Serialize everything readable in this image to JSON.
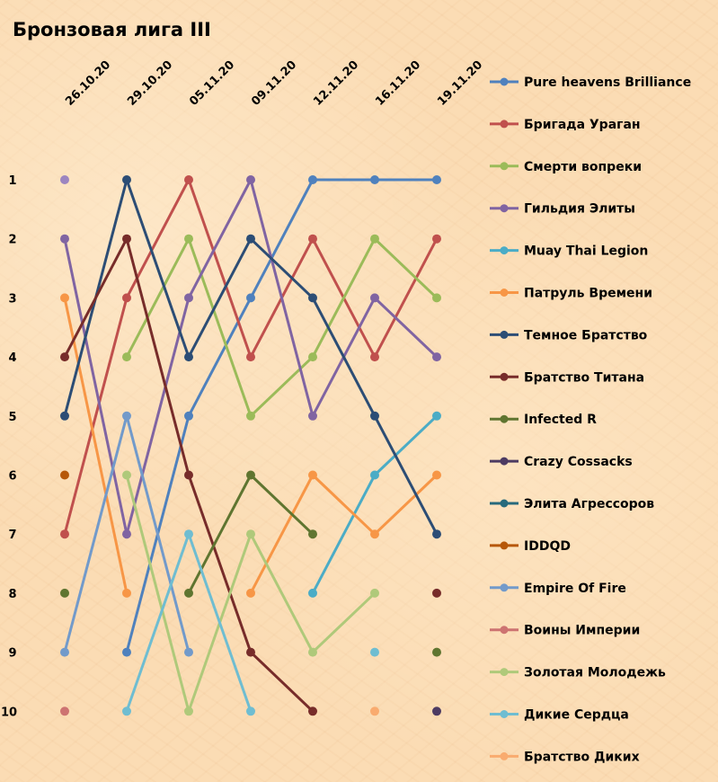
{
  "chart_data": {
    "type": "line",
    "title": "Бронзовая лига III",
    "xlabel": "",
    "ylabel": "",
    "categories": [
      "26.10.20",
      "29.10.20",
      "05.11.20",
      "09.11.20",
      "12.11.20",
      "16.11.20",
      "19.11.20"
    ],
    "y_ticks": [
      "1",
      "2",
      "3",
      "4",
      "5",
      "6",
      "7",
      "8",
      "9",
      "10"
    ],
    "ylim": [
      1,
      10
    ],
    "y_inverted": true,
    "legend_position": "right",
    "grid": false,
    "series": [
      {
        "name": "Pure heavens Brilliance",
        "color": "#4f81bd",
        "values": [
          null,
          9,
          5,
          3,
          1,
          1,
          1
        ]
      },
      {
        "name": "Бригада Ураган",
        "color": "#c0504d",
        "values": [
          7,
          3,
          1,
          4,
          2,
          4,
          2
        ]
      },
      {
        "name": "Смерти вопреки",
        "color": "#9bbb59",
        "values": [
          null,
          4,
          2,
          5,
          4,
          2,
          3
        ]
      },
      {
        "name": "Гильдия Элиты",
        "color": "#8064a2",
        "values": [
          2,
          7,
          3,
          1,
          5,
          3,
          4
        ]
      },
      {
        "name": "Muay Thai Legion",
        "color": "#4bacc6",
        "values": [
          null,
          null,
          null,
          null,
          8,
          6,
          5
        ]
      },
      {
        "name": "Патруль Времени",
        "color": "#f79646",
        "values": [
          3,
          8,
          null,
          8,
          6,
          7,
          6
        ]
      },
      {
        "name": "Темное Братство",
        "color": "#2c4d75",
        "values": [
          5,
          1,
          4,
          2,
          3,
          5,
          7
        ]
      },
      {
        "name": "Братство Титана",
        "color": "#772c2a",
        "values": [
          4,
          2,
          6,
          9,
          10,
          null,
          8
        ]
      },
      {
        "name": "Infected R",
        "color": "#5f7530",
        "values": [
          8,
          null,
          8,
          6,
          7,
          null,
          9
        ]
      },
      {
        "name": "Crazy Cossacks",
        "color": "#4d3b62",
        "values": [
          null,
          null,
          null,
          null,
          null,
          null,
          10
        ]
      },
      {
        "name": "Элита Агрессоров",
        "color": "#276a7c",
        "values": [
          null,
          null,
          null,
          null,
          null,
          null,
          null
        ]
      },
      {
        "name": "IDDQD",
        "color": "#b65708",
        "values": [
          6,
          null,
          null,
          null,
          null,
          null,
          null
        ]
      },
      {
        "name": "Empire Of Fire",
        "color": "#729aca",
        "values": [
          9,
          5,
          9,
          null,
          null,
          null,
          null
        ]
      },
      {
        "name": "Воины Империи",
        "color": "#cd7371",
        "values": [
          10,
          null,
          null,
          null,
          null,
          null,
          null
        ]
      },
      {
        "name": "Золотая Молодежь",
        "color": "#afc97a",
        "values": [
          null,
          6,
          10,
          7,
          9,
          8,
          null
        ]
      },
      {
        "name": "Дикие Сердца",
        "color": "#6fbdd1",
        "values": [
          null,
          10,
          7,
          10,
          null,
          9,
          null
        ]
      },
      {
        "name": "Братство Диких",
        "color": "#f9ab6f",
        "values": [
          null,
          null,
          null,
          null,
          null,
          10,
          null
        ]
      },
      {
        "name": "",
        "color": "#9c85c0",
        "values": [
          1,
          null,
          null,
          null,
          null,
          null,
          null
        ],
        "hide_in_legend": true
      }
    ]
  }
}
